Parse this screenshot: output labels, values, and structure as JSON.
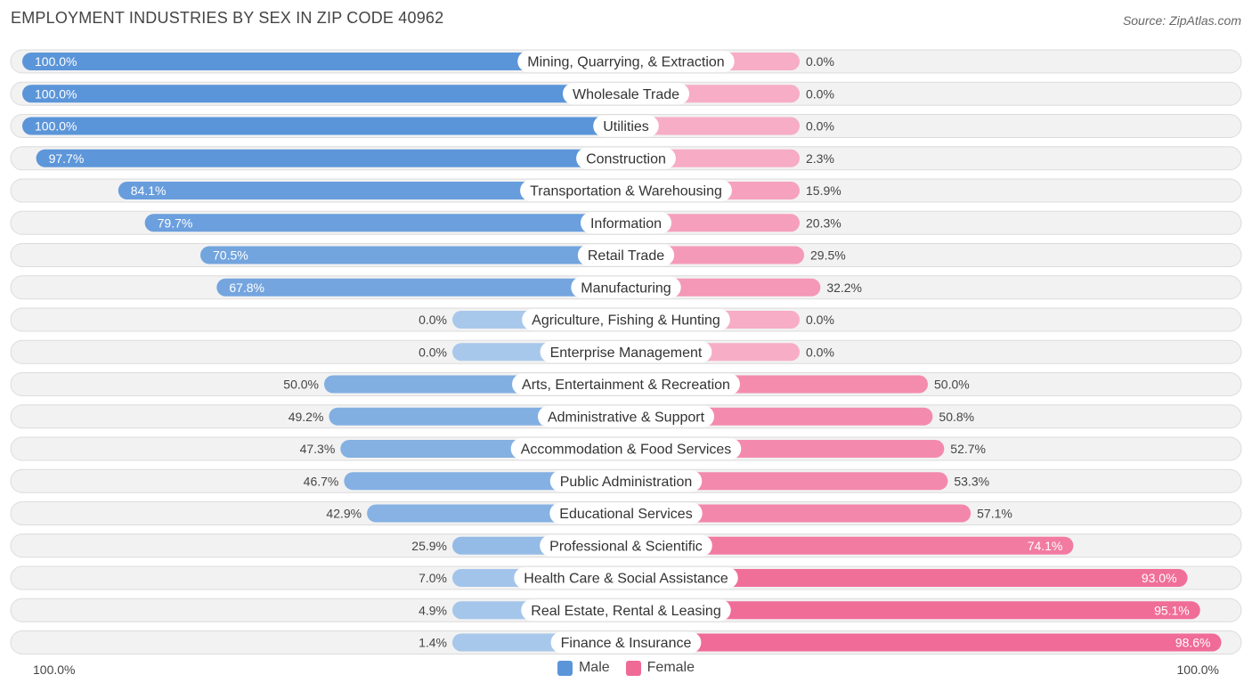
{
  "header": {
    "title": "EMPLOYMENT INDUSTRIES BY SEX IN ZIP CODE 40962",
    "source": "Source: ZipAtlas.com"
  },
  "footer": {
    "left_axis_label": "100.0%",
    "right_axis_label": "100.0%"
  },
  "legend": {
    "male_label": "Male",
    "female_label": "Female"
  },
  "colors": {
    "male_strong": "#5b95d9",
    "male_light": "#a8c8eb",
    "female_strong": "#f06a96",
    "female_light": "#f7adc6",
    "track": "#f2f2f2",
    "track_border": "#dcdcdc"
  },
  "chart_data": {
    "type": "bar",
    "orientation": "horizontal-diverging",
    "title": "EMPLOYMENT INDUSTRIES BY SEX IN ZIP CODE 40962",
    "xlim": [
      -100,
      100
    ],
    "categories": [
      "Mining, Quarrying, & Extraction",
      "Wholesale Trade",
      "Utilities",
      "Construction",
      "Transportation & Warehousing",
      "Information",
      "Retail Trade",
      "Manufacturing",
      "Agriculture, Fishing & Hunting",
      "Enterprise Management",
      "Arts, Entertainment & Recreation",
      "Administrative & Support",
      "Accommodation & Food Services",
      "Public Administration",
      "Educational Services",
      "Professional & Scientific",
      "Health Care & Social Assistance",
      "Real Estate, Rental & Leasing",
      "Finance & Insurance"
    ],
    "series": [
      {
        "name": "Male",
        "values": [
          100.0,
          100.0,
          100.0,
          97.7,
          84.1,
          79.7,
          70.5,
          67.8,
          0.0,
          0.0,
          50.0,
          49.2,
          47.3,
          46.7,
          42.9,
          25.9,
          7.0,
          4.9,
          1.4
        ],
        "labels": [
          "100.0%",
          "100.0%",
          "100.0%",
          "97.7%",
          "84.1%",
          "79.7%",
          "70.5%",
          "67.8%",
          "0.0%",
          "0.0%",
          "50.0%",
          "49.2%",
          "47.3%",
          "46.7%",
          "42.9%",
          "25.9%",
          "7.0%",
          "4.9%",
          "1.4%"
        ]
      },
      {
        "name": "Female",
        "values": [
          0.0,
          0.0,
          0.0,
          2.3,
          15.9,
          20.3,
          29.5,
          32.2,
          0.0,
          0.0,
          50.0,
          50.8,
          52.7,
          53.3,
          57.1,
          74.1,
          93.0,
          95.1,
          98.6
        ],
        "labels": [
          "0.0%",
          "0.0%",
          "0.0%",
          "2.3%",
          "15.9%",
          "20.3%",
          "29.5%",
          "32.2%",
          "0.0%",
          "0.0%",
          "50.0%",
          "50.8%",
          "52.7%",
          "53.3%",
          "57.1%",
          "74.1%",
          "93.0%",
          "95.1%",
          "98.6%"
        ]
      }
    ]
  }
}
